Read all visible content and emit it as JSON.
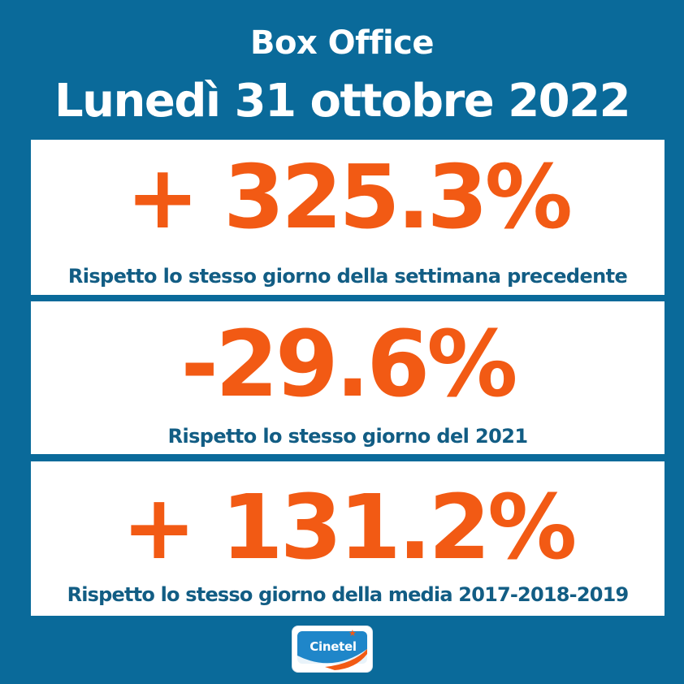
{
  "header": {
    "line1": "Box Office",
    "line2": "Lunedì 31 ottobre 2022"
  },
  "stats": [
    {
      "value": "+ 325.3%",
      "caption": "Rispetto lo stesso giorno della settimana precedente"
    },
    {
      "value": "-29.6%",
      "caption": "Rispetto lo stesso giorno del 2021"
    },
    {
      "value": "+ 131.2%",
      "caption": "Rispetto lo stesso giorno della media 2017-2018-2019"
    }
  ],
  "logo": {
    "text": "Cinetel",
    "icon": "star-icon"
  },
  "colors": {
    "background": "#0a6a9a",
    "accent": "#f25a14",
    "caption": "#125d84",
    "panel": "#ffffff"
  }
}
